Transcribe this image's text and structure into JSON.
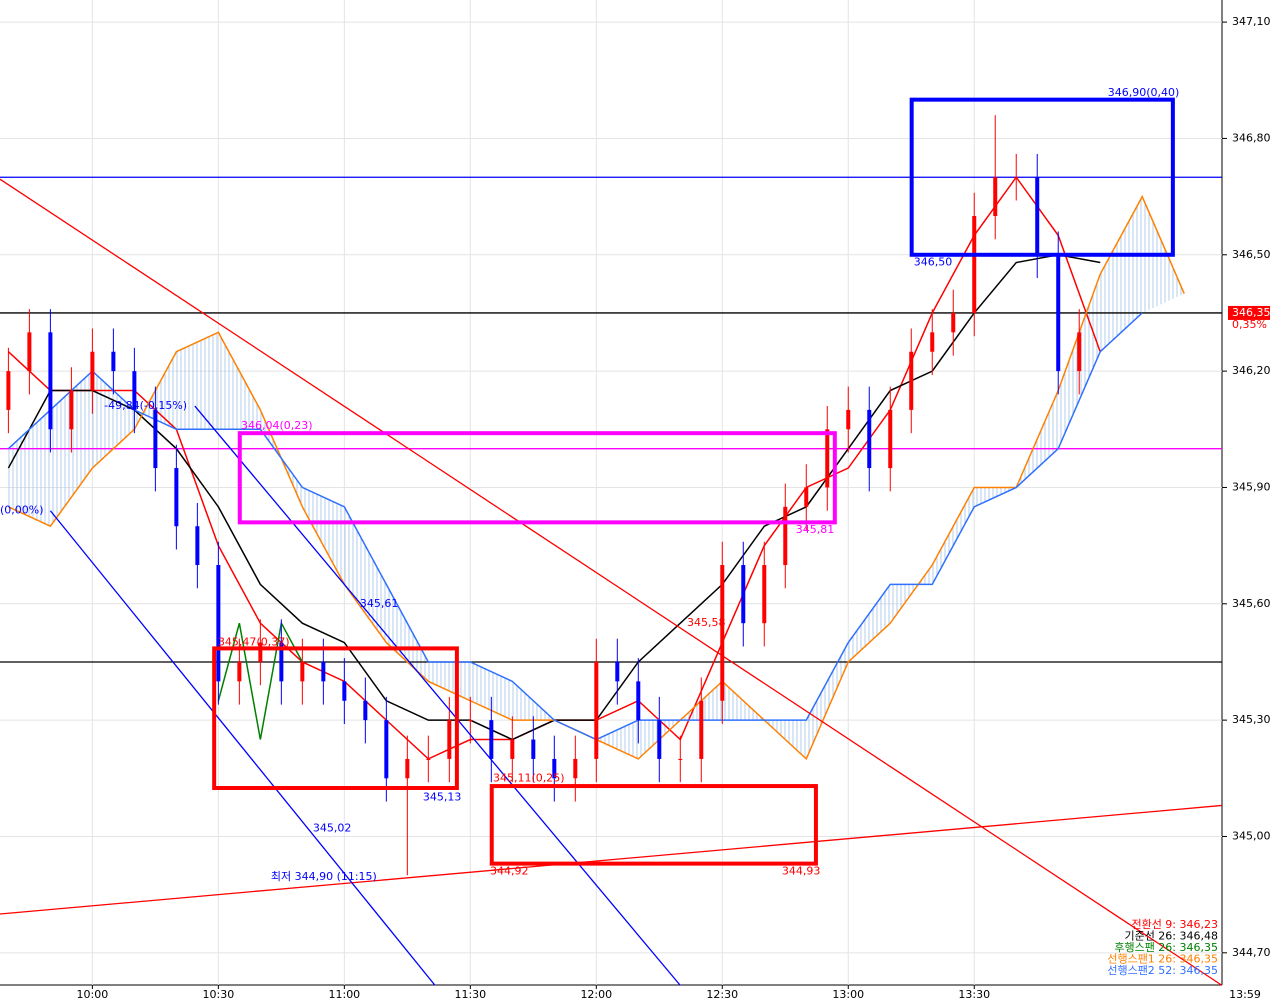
{
  "chart_data": {
    "type": "candlestick",
    "up_color": "#ff0000",
    "down_color": "#0000ff",
    "xlim": [
      578,
      869
    ],
    "ylim": [
      344.617,
      347.157
    ],
    "grid": true,
    "xticks": [
      {
        "value": 600,
        "label": "10:00"
      },
      {
        "value": 630,
        "label": "10:30"
      },
      {
        "value": 660,
        "label": "11:00"
      },
      {
        "value": 690,
        "label": "11:30"
      },
      {
        "value": 720,
        "label": "12:00"
      },
      {
        "value": 750,
        "label": "12:30"
      },
      {
        "value": 780,
        "label": "13:00"
      },
      {
        "value": 810,
        "label": "13:30"
      }
    ],
    "time_label": "13:59",
    "yticks": [
      {
        "value": 347.1,
        "label": "347,10"
      },
      {
        "value": 346.8,
        "label": "346,80"
      },
      {
        "value": 346.5,
        "label": "346,50"
      },
      {
        "value": 346.2,
        "label": "346,20"
      },
      {
        "value": 345.9,
        "label": "345,90"
      },
      {
        "value": 345.6,
        "label": "345,60"
      },
      {
        "value": 345.3,
        "label": "345,30"
      },
      {
        "value": 345.0,
        "label": "345,00"
      },
      {
        "value": 344.7,
        "label": "344,70"
      }
    ],
    "last_price": {
      "value": 346.35,
      "label": "346,35"
    },
    "change_label": "0,35%",
    "x": [
      580,
      585,
      590,
      595,
      600,
      605,
      610,
      615,
      620,
      625,
      630,
      635,
      640,
      645,
      650,
      655,
      660,
      665,
      670,
      675,
      680,
      685,
      690,
      695,
      700,
      705,
      710,
      715,
      720,
      725,
      730,
      735,
      740,
      745,
      750,
      755,
      760,
      765,
      770,
      775,
      780,
      785,
      790,
      795,
      800,
      805,
      810,
      815,
      820,
      825,
      830,
      835
    ],
    "open": [
      346.1,
      346.2,
      346.3,
      346.05,
      346.15,
      346.25,
      346.2,
      346.1,
      345.95,
      345.8,
      345.7,
      345.4,
      345.45,
      345.5,
      345.4,
      345.45,
      345.4,
      345.35,
      345.3,
      345.15,
      345.2,
      345.2,
      345.3,
      345.3,
      345.2,
      345.25,
      345.2,
      345.15,
      345.2,
      345.45,
      345.4,
      345.3,
      345.2,
      345.2,
      345.35,
      345.7,
      345.55,
      345.7,
      345.85,
      345.9,
      346.05,
      346.1,
      345.95,
      346.1,
      346.25,
      346.3,
      346.35,
      346.6,
      346.7,
      346.7,
      346.5,
      346.2
    ],
    "high": [
      346.26,
      346.36,
      346.36,
      346.21,
      346.31,
      346.31,
      346.26,
      346.16,
      346.01,
      345.86,
      345.76,
      345.51,
      345.56,
      345.56,
      345.51,
      345.51,
      345.46,
      345.41,
      345.36,
      345.26,
      345.26,
      345.36,
      345.36,
      345.36,
      345.31,
      345.31,
      345.26,
      345.26,
      345.51,
      345.51,
      345.46,
      345.36,
      345.26,
      345.41,
      345.76,
      345.76,
      345.76,
      345.91,
      345.96,
      346.11,
      346.16,
      346.16,
      346.16,
      346.31,
      346.36,
      346.41,
      346.66,
      346.86,
      346.76,
      346.76,
      346.56,
      346.36
    ],
    "low": [
      346.04,
      346.14,
      345.99,
      345.99,
      346.09,
      346.14,
      346.04,
      345.89,
      345.74,
      345.64,
      345.34,
      345.34,
      345.39,
      345.34,
      345.34,
      345.34,
      345.29,
      345.24,
      345.09,
      344.9,
      345.14,
      345.14,
      345.24,
      345.14,
      345.14,
      345.14,
      345.09,
      345.09,
      345.14,
      345.34,
      345.24,
      345.14,
      345.14,
      345.14,
      345.29,
      345.49,
      345.49,
      345.64,
      345.79,
      345.84,
      345.99,
      345.89,
      345.89,
      346.04,
      346.19,
      346.24,
      346.29,
      346.54,
      346.64,
      346.44,
      346.14,
      346.14
    ],
    "close": [
      346.2,
      346.3,
      346.05,
      346.15,
      346.25,
      346.2,
      346.1,
      345.95,
      345.8,
      345.7,
      345.4,
      345.45,
      345.5,
      345.4,
      345.45,
      345.4,
      345.35,
      345.3,
      345.15,
      345.2,
      345.2,
      345.3,
      345.3,
      345.2,
      345.25,
      345.2,
      345.15,
      345.2,
      345.45,
      345.4,
      345.3,
      345.2,
      345.2,
      345.35,
      345.7,
      345.55,
      345.7,
      345.85,
      345.9,
      346.05,
      346.1,
      345.95,
      346.1,
      346.25,
      346.3,
      346.35,
      346.6,
      346.7,
      346.7,
      346.5,
      346.2,
      346.3
    ],
    "series": [
      {
        "name": "전환선 9: 346,23",
        "color": "#ff0000",
        "x": [
          580,
          590,
          600,
          610,
          620,
          630,
          640,
          650,
          660,
          670,
          680,
          690,
          700,
          710,
          720,
          730,
          740,
          750,
          760,
          770,
          780,
          790,
          800,
          810,
          820,
          830,
          840
        ],
        "values": [
          346.25,
          346.15,
          346.15,
          346.15,
          346.05,
          345.75,
          345.55,
          345.45,
          345.4,
          345.3,
          345.2,
          345.25,
          345.25,
          345.3,
          345.3,
          345.35,
          345.25,
          345.5,
          345.75,
          345.9,
          345.95,
          346.1,
          346.35,
          346.55,
          346.7,
          346.55,
          346.25
        ]
      },
      {
        "name": "기준선 26: 346,48",
        "color": "#000000",
        "x": [
          580,
          590,
          600,
          610,
          620,
          630,
          640,
          650,
          660,
          670,
          680,
          690,
          700,
          710,
          720,
          730,
          740,
          750,
          760,
          770,
          780,
          790,
          800,
          810,
          820,
          830,
          840
        ],
        "values": [
          345.95,
          346.15,
          346.15,
          346.1,
          346.0,
          345.85,
          345.65,
          345.55,
          345.5,
          345.35,
          345.3,
          345.3,
          345.25,
          345.3,
          345.3,
          345.45,
          345.55,
          345.65,
          345.8,
          345.85,
          346.0,
          346.15,
          346.2,
          346.35,
          346.48,
          346.5,
          346.48
        ]
      },
      {
        "name": "후행스팬 26: 346,35",
        "color": "#008000",
        "x": [
          630,
          635,
          640,
          645,
          650
        ],
        "values": [
          345.35,
          345.55,
          345.25,
          345.55,
          345.45
        ]
      },
      {
        "name": "선행스팬1 26: 346,35",
        "color": "#ff8000",
        "x": [
          580,
          590,
          600,
          610,
          620,
          630,
          640,
          650,
          660,
          670,
          680,
          690,
          700,
          710,
          720,
          730,
          740,
          750,
          760,
          770,
          780,
          790,
          800,
          810,
          820,
          830,
          840,
          850,
          860
        ],
        "values": [
          345.85,
          345.8,
          345.95,
          346.05,
          346.25,
          346.3,
          346.1,
          345.85,
          345.65,
          345.5,
          345.4,
          345.35,
          345.3,
          345.3,
          345.25,
          345.2,
          345.3,
          345.4,
          345.3,
          345.2,
          345.45,
          345.55,
          345.7,
          345.9,
          345.9,
          346.15,
          346.45,
          346.65,
          346.4
        ]
      },
      {
        "name": "선행스팬2 52: 346,35",
        "color": "#3070ff",
        "x": [
          580,
          590,
          600,
          610,
          620,
          630,
          640,
          650,
          660,
          670,
          680,
          690,
          700,
          710,
          720,
          730,
          740,
          750,
          760,
          770,
          780,
          790,
          800,
          810,
          820,
          830,
          840,
          850
        ],
        "values": [
          346.0,
          346.1,
          346.2,
          346.1,
          346.05,
          346.05,
          346.05,
          345.9,
          345.85,
          345.65,
          345.45,
          345.45,
          345.4,
          345.3,
          345.25,
          345.3,
          345.3,
          345.3,
          345.3,
          345.3,
          345.5,
          345.65,
          345.65,
          345.85,
          345.9,
          346.0,
          346.25,
          346.35
        ]
      }
    ],
    "hlines": [
      {
        "value": 346.7,
        "color": "#0000ff"
      },
      {
        "value": 346.35,
        "color": "#000000"
      },
      {
        "value": 346.0,
        "color": "#ff00ff"
      },
      {
        "value": 345.45,
        "color": "#000000"
      }
    ],
    "trendlines": [
      {
        "x": [
          578,
          869
        ],
        "y": [
          346.695,
          344.616
        ],
        "color": "#ff0000"
      },
      {
        "x": [
          578,
          869
        ],
        "y": [
          344.8,
          345.08
        ],
        "color": "#ff0000"
      },
      {
        "x": [
          590,
          681.6
        ],
        "y": [
          345.84,
          344.616
        ],
        "color": "#0000ff"
      },
      {
        "x": [
          624.4,
          740
        ],
        "y": [
          346.11,
          344.616
        ],
        "color": "#0000ff"
      }
    ],
    "boxes": [
      {
        "x": [
          795.1,
          857.3
        ],
        "y": [
          346.9,
          346.5
        ],
        "color": "#0000ff"
      },
      {
        "x": [
          635.1,
          776.8
        ],
        "y": [
          346.04,
          345.81
        ],
        "color": "#ff00ff"
      },
      {
        "x": [
          629.0,
          686.8
        ],
        "y": [
          345.485,
          345.125
        ],
        "color": "#ff0000"
      },
      {
        "x": [
          695.1,
          772.3
        ],
        "y": [
          345.13,
          344.93
        ],
        "color": "#ff0000"
      }
    ],
    "annotations": [
      {
        "text": "346,90(0,40)",
        "x": 841.8,
        "y": 346.917,
        "color": "#0000ff"
      },
      {
        "text": "346,50",
        "x": 795.6,
        "y": 346.48,
        "color": "#0000ff"
      },
      {
        "text": "346,04(0,23)",
        "x": 635.4,
        "y": 346.058,
        "color": "#ff00ff"
      },
      {
        "text": "345,81",
        "x": 767.5,
        "y": 345.79,
        "color": "#ff00ff"
      },
      {
        "text": "-49,84(-0,15%)",
        "x": 602.8,
        "y": 346.11,
        "color": "#0000ff"
      },
      {
        "text": "(0,00%)",
        "x": 578,
        "y": 345.84,
        "color": "#0000ff"
      },
      {
        "text": "345,61",
        "x": 663.7,
        "y": 345.6,
        "color": "#0000ff"
      },
      {
        "text": "345,47(0,37)",
        "x": 629.9,
        "y": 345.5,
        "color": "#ff0000"
      },
      {
        "text": "345,02",
        "x": 652.5,
        "y": 345.02,
        "color": "#0000ff"
      },
      {
        "text": "최저 344,90 (11:15)",
        "x": 642.5,
        "y": 344.895,
        "color": "#0000ff"
      },
      {
        "text": "345,13",
        "x": 678.7,
        "y": 345.1,
        "color": "#0000ff"
      },
      {
        "text": "345,11(0,25)",
        "x": 695.4,
        "y": 345.15,
        "color": "#ff0000"
      },
      {
        "text": "344,92",
        "x": 694.7,
        "y": 344.91,
        "color": "#ff0000"
      },
      {
        "text": "344,93",
        "x": 764.2,
        "y": 344.91,
        "color": "#ff0000"
      },
      {
        "text": "345,58",
        "x": 741.6,
        "y": 345.55,
        "color": "#ff0000"
      }
    ]
  }
}
